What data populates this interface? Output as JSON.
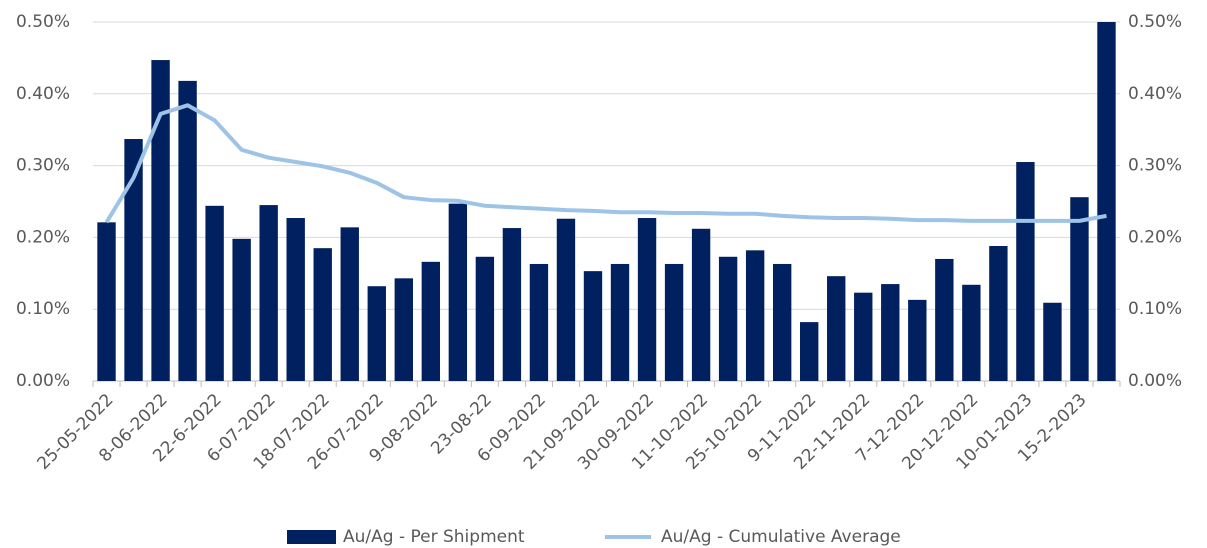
{
  "chart_data": {
    "type": "bar",
    "categories": [
      "25-05-2022",
      null,
      "8-06-2022",
      null,
      "22-6-2022",
      null,
      "6-07-2022",
      null,
      "18-07-2022",
      null,
      "26-07-2022",
      null,
      "9-08-2022",
      null,
      "23-08-22",
      null,
      "6-09-2022",
      null,
      "21-09-2022",
      null,
      "30-09-2022",
      null,
      "11-10-2022",
      null,
      "25-10-2022",
      null,
      "9-11-2022",
      null,
      "22-11-2022",
      null,
      "7-12-2022",
      null,
      "20-12-2022",
      null,
      "10-01-2023",
      null,
      "15-2-2023",
      null
    ],
    "series": [
      {
        "name": "Au/Ag - Per Shipment",
        "color": "#002060",
        "type": "bar",
        "values": [
          0.221,
          0.337,
          0.447,
          0.418,
          0.244,
          0.198,
          0.245,
          0.227,
          0.185,
          0.214,
          0.132,
          0.143,
          0.166,
          0.247,
          0.173,
          0.213,
          0.163,
          0.226,
          0.153,
          0.163,
          0.227,
          0.163,
          0.212,
          0.173,
          0.182,
          0.163,
          0.082,
          0.146,
          0.123,
          0.135,
          0.113,
          0.17,
          0.134,
          0.188,
          0.305,
          0.109,
          0.256,
          0.5
        ]
      },
      {
        "name": "Au/Ag - Cumulative Average",
        "color": "#9dc3e6",
        "type": "line",
        "axis": "y2",
        "values": [
          0.221,
          0.283,
          0.372,
          0.384,
          0.363,
          0.322,
          0.311,
          0.305,
          0.299,
          0.29,
          0.276,
          0.256,
          0.252,
          0.251,
          0.244,
          0.242,
          0.24,
          0.238,
          0.237,
          0.235,
          0.235,
          0.234,
          0.234,
          0.233,
          0.233,
          0.23,
          0.228,
          0.227,
          0.227,
          0.226,
          0.224,
          0.224,
          0.223,
          0.223,
          0.223,
          0.223,
          0.223,
          0.23
        ]
      }
    ],
    "ylim": [
      0,
      0.5
    ],
    "yticks": [
      {
        "value": 0,
        "label": "0.00%"
      },
      {
        "value": 0.1,
        "label": "0.10%"
      },
      {
        "value": 0.2,
        "label": "0.20%"
      },
      {
        "value": 0.3,
        "label": "0.30%"
      },
      {
        "value": 0.4,
        "label": "0.40%"
      },
      {
        "value": 0.5,
        "label": "0.50%"
      }
    ],
    "y2lim": [
      0,
      0.5
    ],
    "y2ticks": [
      {
        "value": 0,
        "label": "0.00%"
      },
      {
        "value": 0.1,
        "label": "0.10%"
      },
      {
        "value": 0.2,
        "label": "0.20%"
      },
      {
        "value": 0.3,
        "label": "0.30%"
      },
      {
        "value": 0.4,
        "label": "0.40%"
      },
      {
        "value": 0.5,
        "label": "0.50%"
      }
    ],
    "grid": true,
    "legend": "bottom"
  }
}
